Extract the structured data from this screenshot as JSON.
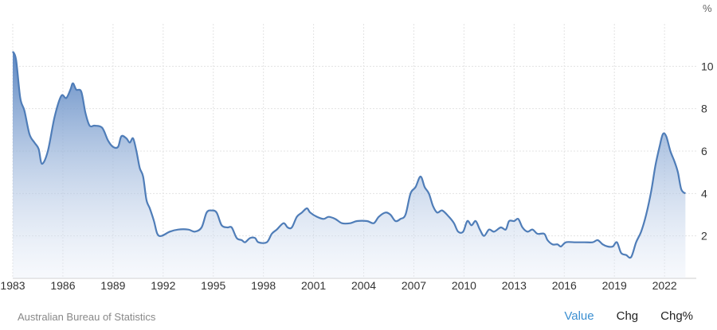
{
  "chart_data": {
    "type": "area",
    "unit": "%",
    "x_ticks": [
      "1983",
      "1986",
      "1989",
      "1992",
      "1995",
      "1998",
      "2001",
      "2004",
      "2007",
      "2010",
      "2013",
      "2016",
      "2019",
      "2022"
    ],
    "y_ticks": [
      "2",
      "4",
      "6",
      "8",
      "10"
    ],
    "ylim": [
      0,
      12
    ],
    "xlim": [
      1983,
      2023.9
    ],
    "grid": true,
    "series": [
      {
        "points": [
          [
            1983.0,
            10.7
          ],
          [
            1983.2,
            10.3
          ],
          [
            1983.45,
            8.5
          ],
          [
            1983.7,
            7.9
          ],
          [
            1984.0,
            6.8
          ],
          [
            1984.3,
            6.4
          ],
          [
            1984.55,
            6.1
          ],
          [
            1984.75,
            5.4
          ],
          [
            1985.1,
            6.0
          ],
          [
            1985.5,
            7.6
          ],
          [
            1985.9,
            8.6
          ],
          [
            1986.2,
            8.5
          ],
          [
            1986.45,
            8.9
          ],
          [
            1986.6,
            9.2
          ],
          [
            1986.8,
            8.9
          ],
          [
            1987.1,
            8.8
          ],
          [
            1987.35,
            7.8
          ],
          [
            1987.6,
            7.2
          ],
          [
            1987.9,
            7.2
          ],
          [
            1988.35,
            7.1
          ],
          [
            1988.7,
            6.5
          ],
          [
            1989.0,
            6.2
          ],
          [
            1989.3,
            6.2
          ],
          [
            1989.5,
            6.7
          ],
          [
            1989.8,
            6.6
          ],
          [
            1990.0,
            6.4
          ],
          [
            1990.2,
            6.6
          ],
          [
            1990.4,
            6.0
          ],
          [
            1990.6,
            5.2
          ],
          [
            1990.8,
            4.8
          ],
          [
            1991.0,
            3.7
          ],
          [
            1991.2,
            3.3
          ],
          [
            1991.45,
            2.7
          ],
          [
            1991.65,
            2.1
          ],
          [
            1991.9,
            2.0
          ],
          [
            1992.4,
            2.2
          ],
          [
            1992.9,
            2.3
          ],
          [
            1993.5,
            2.3
          ],
          [
            1993.9,
            2.2
          ],
          [
            1994.3,
            2.4
          ],
          [
            1994.6,
            3.1
          ],
          [
            1994.9,
            3.2
          ],
          [
            1995.2,
            3.1
          ],
          [
            1995.5,
            2.5
          ],
          [
            1995.85,
            2.4
          ],
          [
            1996.1,
            2.4
          ],
          [
            1996.4,
            1.9
          ],
          [
            1996.7,
            1.8
          ],
          [
            1996.9,
            1.7
          ],
          [
            1997.2,
            1.9
          ],
          [
            1997.5,
            1.9
          ],
          [
            1997.7,
            1.7
          ],
          [
            1998.2,
            1.7
          ],
          [
            1998.5,
            2.1
          ],
          [
            1998.8,
            2.3
          ],
          [
            1999.2,
            2.6
          ],
          [
            1999.45,
            2.4
          ],
          [
            1999.7,
            2.4
          ],
          [
            2000.0,
            2.9
          ],
          [
            2000.3,
            3.1
          ],
          [
            2000.6,
            3.3
          ],
          [
            2000.8,
            3.1
          ],
          [
            2001.2,
            2.9
          ],
          [
            2001.6,
            2.8
          ],
          [
            2001.9,
            2.9
          ],
          [
            2002.3,
            2.8
          ],
          [
            2002.7,
            2.6
          ],
          [
            2003.2,
            2.6
          ],
          [
            2003.6,
            2.7
          ],
          [
            2004.2,
            2.7
          ],
          [
            2004.6,
            2.6
          ],
          [
            2004.9,
            2.9
          ],
          [
            2005.3,
            3.1
          ],
          [
            2005.6,
            3.0
          ],
          [
            2005.9,
            2.7
          ],
          [
            2006.2,
            2.8
          ],
          [
            2006.5,
            3.0
          ],
          [
            2006.8,
            4.0
          ],
          [
            2007.1,
            4.3
          ],
          [
            2007.4,
            4.8
          ],
          [
            2007.65,
            4.3
          ],
          [
            2007.9,
            4.0
          ],
          [
            2008.15,
            3.4
          ],
          [
            2008.4,
            3.1
          ],
          [
            2008.7,
            3.2
          ],
          [
            2009.1,
            2.9
          ],
          [
            2009.4,
            2.6
          ],
          [
            2009.65,
            2.2
          ],
          [
            2009.95,
            2.2
          ],
          [
            2010.2,
            2.7
          ],
          [
            2010.45,
            2.5
          ],
          [
            2010.7,
            2.7
          ],
          [
            2010.95,
            2.3
          ],
          [
            2011.2,
            2.0
          ],
          [
            2011.5,
            2.3
          ],
          [
            2011.8,
            2.2
          ],
          [
            2012.2,
            2.4
          ],
          [
            2012.5,
            2.3
          ],
          [
            2012.7,
            2.7
          ],
          [
            2013.0,
            2.7
          ],
          [
            2013.25,
            2.8
          ],
          [
            2013.5,
            2.4
          ],
          [
            2013.8,
            2.2
          ],
          [
            2014.1,
            2.3
          ],
          [
            2014.4,
            2.1
          ],
          [
            2014.8,
            2.1
          ],
          [
            2015.0,
            1.8
          ],
          [
            2015.3,
            1.6
          ],
          [
            2015.6,
            1.6
          ],
          [
            2015.8,
            1.5
          ],
          [
            2016.1,
            1.7
          ],
          [
            2016.6,
            1.7
          ],
          [
            2017.2,
            1.7
          ],
          [
            2017.7,
            1.7
          ],
          [
            2018.0,
            1.8
          ],
          [
            2018.3,
            1.6
          ],
          [
            2018.6,
            1.5
          ],
          [
            2018.9,
            1.5
          ],
          [
            2019.15,
            1.7
          ],
          [
            2019.4,
            1.2
          ],
          [
            2019.7,
            1.1
          ],
          [
            2020.0,
            1.0
          ],
          [
            2020.3,
            1.7
          ],
          [
            2020.6,
            2.2
          ],
          [
            2020.9,
            3.0
          ],
          [
            2021.2,
            4.1
          ],
          [
            2021.45,
            5.3
          ],
          [
            2021.7,
            6.2
          ],
          [
            2021.9,
            6.8
          ],
          [
            2022.1,
            6.7
          ],
          [
            2022.35,
            6.0
          ],
          [
            2022.6,
            5.5
          ],
          [
            2022.8,
            5.0
          ],
          [
            2023.0,
            4.2
          ],
          [
            2023.25,
            4.0
          ]
        ]
      }
    ]
  },
  "footer": {
    "source": "Australian Bureau of Statistics",
    "tabs": {
      "value": "Value",
      "chg": "Chg",
      "chgpct": "Chg%"
    }
  },
  "colors": {
    "line": "#4f7db8",
    "fill_top": "#5b86c2",
    "fill_bottom": "#e8eef8",
    "grid": "#e3e3e3",
    "active_tab": "#3b8fd1"
  }
}
